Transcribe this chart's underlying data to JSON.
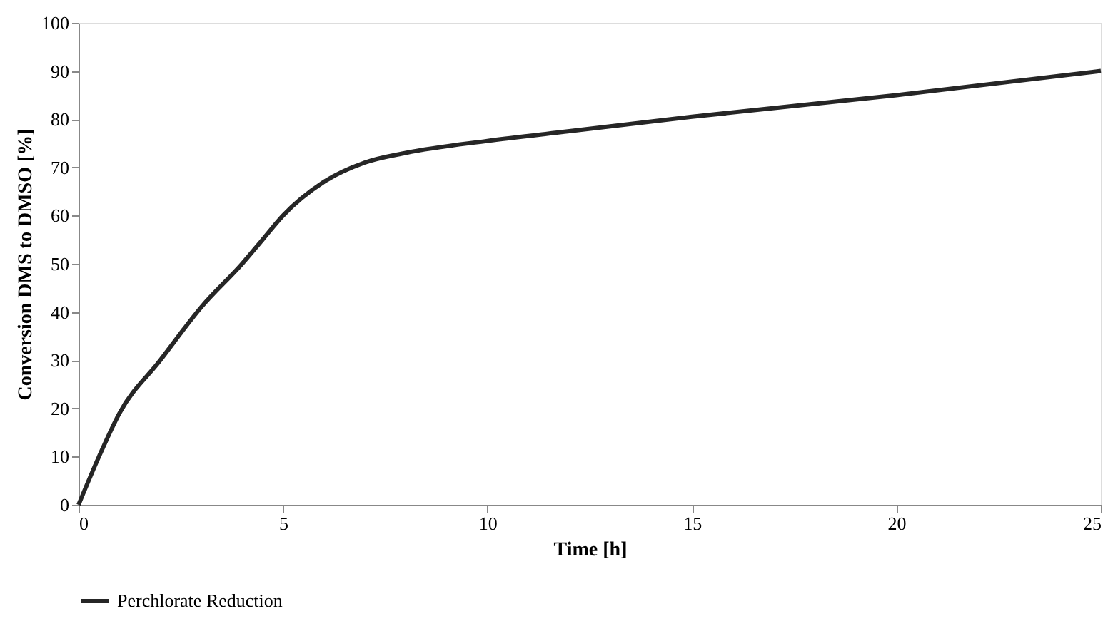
{
  "chart_data": {
    "type": "line",
    "xlabel": "Time [h]",
    "ylabel": "Conversion DMS to DMSO [%]",
    "x": [
      0,
      0.5,
      1,
      2,
      3,
      4,
      4.5,
      5,
      6,
      7,
      8,
      10,
      12,
      15,
      20,
      25
    ],
    "series": [
      {
        "name": "Perchlorate Reduction",
        "color": "#262626",
        "values": [
          0,
          10,
          19,
          30,
          41,
          50,
          55,
          60,
          67,
          71,
          73,
          75.5,
          77.5,
          80.5,
          85,
          90
        ]
      }
    ],
    "xlim": [
      0,
      25
    ],
    "xticks": [
      0,
      5,
      10,
      15,
      20,
      25
    ],
    "ylim": [
      0,
      100
    ],
    "yticks": [
      0,
      10,
      20,
      30,
      40,
      50,
      60,
      70,
      80,
      90,
      100
    ],
    "grid": false,
    "legend": "bottom",
    "marker": "none",
    "line_style": "solid"
  }
}
